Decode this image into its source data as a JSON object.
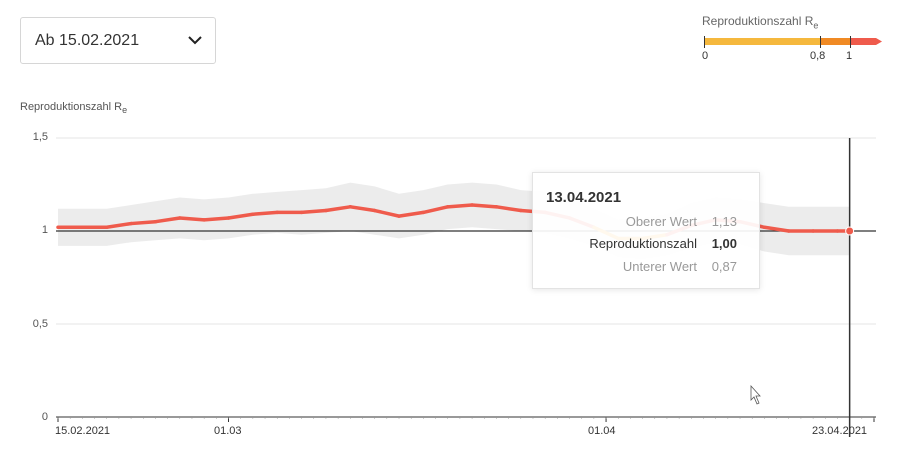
{
  "date_select": {
    "value": "Ab 15.02.2021",
    "icon": "chevron-down-icon"
  },
  "legend": {
    "title": "Reproduktionszahl R",
    "title_subscript": "e",
    "ticks": [
      "0",
      "0,8",
      "1"
    ],
    "colors": {
      "low": "#f5b83d",
      "mid": "#f08a24",
      "high": "#ef5b4c"
    }
  },
  "axis": {
    "y_title": "Reproduktionszahl R",
    "y_title_subscript": "e",
    "y_tick_labels": [
      "1,5",
      "1",
      "0,5",
      "0"
    ],
    "x_tick_labels": [
      "15.02.2021",
      "01.03",
      "01.04",
      "23.04.2021"
    ]
  },
  "tooltip": {
    "date": "13.04.2021",
    "rows": [
      {
        "label": "Oberer Wert",
        "value": "1,13"
      },
      {
        "label": "Reproduktionszahl",
        "value": "1,00"
      },
      {
        "label": "Unterer Wert",
        "value": "0,87"
      }
    ]
  },
  "chart_data": {
    "type": "line",
    "title": "",
    "ylabel": "Reproduktionszahl Re",
    "ylim": [
      0,
      1.5
    ],
    "xlim": [
      "2021-02-15",
      "2021-04-23"
    ],
    "reference_line": 1,
    "selected_date": "2021-04-21",
    "grid": true,
    "x": [
      "2021-02-15",
      "2021-02-17",
      "2021-02-19",
      "2021-02-21",
      "2021-02-23",
      "2021-02-25",
      "2021-02-27",
      "2021-03-01",
      "2021-03-03",
      "2021-03-05",
      "2021-03-07",
      "2021-03-09",
      "2021-03-11",
      "2021-03-13",
      "2021-03-15",
      "2021-03-17",
      "2021-03-19",
      "2021-03-21",
      "2021-03-23",
      "2021-03-25",
      "2021-03-27",
      "2021-03-29",
      "2021-03-31",
      "2021-04-02",
      "2021-04-04",
      "2021-04-06",
      "2021-04-08",
      "2021-04-10",
      "2021-04-12",
      "2021-04-14",
      "2021-04-16",
      "2021-04-18",
      "2021-04-20",
      "2021-04-21"
    ],
    "series": [
      {
        "values": [
          1.02,
          1.02,
          1.02,
          1.04,
          1.05,
          1.07,
          1.06,
          1.07,
          1.09,
          1.1,
          1.1,
          1.11,
          1.13,
          1.11,
          1.08,
          1.1,
          1.13,
          1.14,
          1.13,
          1.11,
          1.1,
          1.07,
          1.02,
          0.96,
          0.96,
          0.98,
          1.03,
          1.06,
          1.05,
          1.02,
          1.0,
          1.0,
          1.0,
          1.0
        ]
      },
      {
        "values": [
          1.12,
          1.12,
          1.12,
          1.14,
          1.16,
          1.18,
          1.17,
          1.18,
          1.2,
          1.21,
          1.22,
          1.23,
          1.26,
          1.24,
          1.2,
          1.22,
          1.25,
          1.26,
          1.25,
          1.22,
          1.21,
          1.18,
          1.12,
          1.06,
          1.07,
          1.09,
          1.15,
          1.18,
          1.17,
          1.15,
          1.13,
          1.13,
          1.13,
          1.13
        ]
      },
      {
        "values": [
          0.92,
          0.92,
          0.92,
          0.94,
          0.95,
          0.96,
          0.95,
          0.96,
          0.98,
          0.99,
          0.98,
          0.99,
          1.0,
          0.98,
          0.96,
          0.98,
          1.01,
          1.02,
          1.01,
          1.0,
          0.99,
          0.96,
          0.92,
          0.86,
          0.85,
          0.87,
          0.91,
          0.94,
          0.93,
          0.89,
          0.87,
          0.87,
          0.87,
          0.87
        ]
      }
    ]
  }
}
